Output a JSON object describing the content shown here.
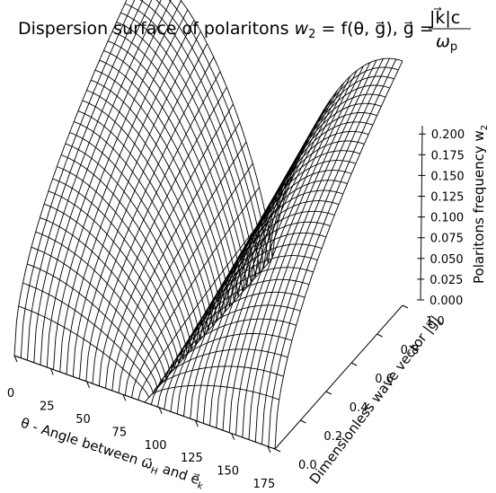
{
  "chart_data": {
    "type": "surface3d",
    "title": "Dispersion surface of polaritons w₂ = f(θ, g⃗), g⃗ = |k⃗|c / ω_p",
    "title_parts": {
      "prefix": "Dispersion surface of polaritons ",
      "lhs": "w",
      "lhs_sub": "2",
      "mid": " = f(θ, g⃗), g⃗ = ",
      "num": "|k⃗|c",
      "den": "ω",
      "den_sub": "p"
    },
    "xlabel": "θ - Angle between ω⃗H and e⃗k",
    "xlabel_parts": {
      "a": "θ - Angle between ω⃗",
      "a_sub": "H",
      "b": " and e⃗",
      "b_sub": "k"
    },
    "ylabel": "Dimensionless wave vector |g⃗|",
    "zlabel": "Polaritons frequency w₂",
    "zlabel_parts": {
      "a": "Polaritons frequency w",
      "a_sub": "2"
    },
    "x_ticks": [
      "0",
      "25",
      "50",
      "75",
      "100",
      "125",
      "150",
      "175"
    ],
    "x_range": [
      0,
      180
    ],
    "y_ticks": [
      "0.0",
      "0.2",
      "0.4",
      "0.6",
      "0.8",
      "1.0"
    ],
    "y_range": [
      0,
      1
    ],
    "z_ticks": [
      "0.000",
      "0.025",
      "0.050",
      "0.075",
      "0.100",
      "0.125",
      "0.150",
      "0.175",
      "0.200"
    ],
    "z_range": [
      0,
      0.21
    ],
    "surface": {
      "theta_peaks": [
        0,
        180
      ],
      "theta_trough": 90,
      "w2_max_at_g1": 0.21,
      "w2_at_trough": 0.0,
      "grid_theta_lines": 40,
      "grid_g_lines": 30
    },
    "grid": false,
    "colors": {
      "mesh": "#000000",
      "surface_fill": "#ffffff"
    }
  }
}
